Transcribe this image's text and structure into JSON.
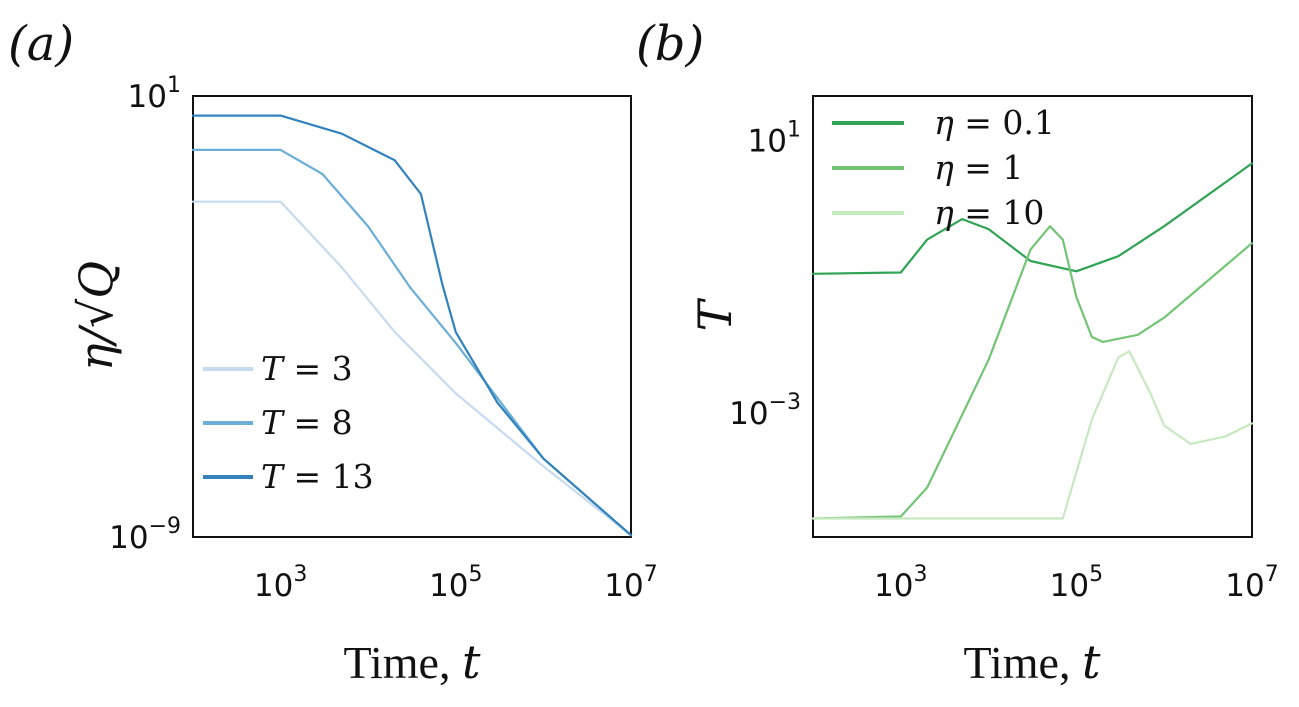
{
  "chart_data": [
    {
      "panel_label": "(a)",
      "type": "line",
      "xscale": "log",
      "yscale": "log",
      "xlabel_text": "Time, ",
      "xlabel_var": "t",
      "ylabel": "η/√Q",
      "xlim": [
        100,
        10000000
      ],
      "ylim": [
        1e-09,
        10
      ],
      "x_ticks": [
        {
          "base": "10",
          "exp": "3",
          "value": 1000
        },
        {
          "base": "10",
          "exp": "5",
          "value": 100000
        },
        {
          "base": "10",
          "exp": "7",
          "value": 10000000
        }
      ],
      "y_ticks": [
        {
          "base": "10",
          "exp": "1",
          "value": 10
        },
        {
          "base": "10",
          "exp": "−9",
          "value": 1e-09
        }
      ],
      "legend_position": "lower-left",
      "series": [
        {
          "name": "T = 3",
          "legend_var": "T",
          "legend_rest": " = 3",
          "color": "#c6dbef",
          "points": [
            [
              100,
              0.04
            ],
            [
              1000,
              0.04
            ],
            [
              5000,
              0.0013
            ],
            [
              20000,
              4.5e-05
            ],
            [
              100000,
              1.8e-06
            ],
            [
              1000000,
              4e-08
            ],
            [
              10000000,
              1.1e-09
            ]
          ]
        },
        {
          "name": "T = 8",
          "legend_var": "T",
          "legend_rest": " = 8",
          "color": "#6baed6",
          "points": [
            [
              100,
              0.6
            ],
            [
              1000,
              0.6
            ],
            [
              3000,
              0.17
            ],
            [
              10000,
              0.011
            ],
            [
              30000,
              0.00046
            ],
            [
              100000,
              2.5e-05
            ],
            [
              1000000,
              6e-08
            ],
            [
              10000000,
              1.1e-09
            ]
          ]
        },
        {
          "name": "T = 13",
          "legend_var": "T",
          "legend_rest": " = 13",
          "color": "#3182bd",
          "points": [
            [
              100,
              3.6
            ],
            [
              1000,
              3.6
            ],
            [
              5000,
              1.4
            ],
            [
              20000,
              0.35
            ],
            [
              40000,
              0.06
            ],
            [
              70000,
              0.00055
            ],
            [
              100000,
              4.4e-05
            ],
            [
              300000,
              1.1e-06
            ],
            [
              1000000,
              6e-08
            ],
            [
              10000000,
              1.1e-09
            ]
          ]
        }
      ]
    },
    {
      "panel_label": "(b)",
      "type": "line",
      "xscale": "log",
      "yscale": "log",
      "xlabel_text": "Time, ",
      "xlabel_var": "t",
      "ylabel": "T",
      "xlim": [
        100,
        10000000
      ],
      "ylim": [
        1.5e-05,
        45
      ],
      "x_ticks": [
        {
          "base": "10",
          "exp": "3",
          "value": 1000
        },
        {
          "base": "10",
          "exp": "5",
          "value": 100000
        },
        {
          "base": "10",
          "exp": "7",
          "value": 10000000
        }
      ],
      "y_ticks": [
        {
          "base": "10",
          "exp": "1",
          "value": 10
        },
        {
          "base": "10",
          "exp": "−3",
          "value": 0.001
        }
      ],
      "legend_position": "top-left",
      "series": [
        {
          "name": "η = 0.1",
          "legend_var": "η",
          "legend_rest": " = 0.1",
          "color": "#31a354",
          "points": [
            [
              100,
              0.11
            ],
            [
              1000,
              0.115
            ],
            [
              2000,
              0.35
            ],
            [
              5000,
              0.7
            ],
            [
              10000,
              0.5
            ],
            [
              30000,
              0.17
            ],
            [
              100000,
              0.12
            ],
            [
              300000,
              0.2
            ],
            [
              1000000,
              0.55
            ],
            [
              10000000,
              4.6
            ]
          ]
        },
        {
          "name": "η = 1",
          "legend_var": "η",
          "legend_rest": " = 1",
          "color": "#74c476",
          "points": [
            [
              100,
              2.8e-05
            ],
            [
              1000,
              3e-05
            ],
            [
              2000,
              8e-05
            ],
            [
              10000,
              0.006
            ],
            [
              30000,
              0.25
            ],
            [
              50000,
              0.55
            ],
            [
              70000,
              0.35
            ],
            [
              100000,
              0.05
            ],
            [
              150000,
              0.013
            ],
            [
              200000,
              0.011
            ],
            [
              500000,
              0.014
            ],
            [
              1000000,
              0.025
            ],
            [
              10000000,
              0.31
            ]
          ]
        },
        {
          "name": "η = 10",
          "legend_var": "η",
          "legend_rest": " = 10",
          "color": "#c7e9c0",
          "points": [
            [
              100,
              2.8e-05
            ],
            [
              70000,
              2.8e-05
            ],
            [
              150000,
              0.0008
            ],
            [
              300000,
              0.0065
            ],
            [
              400000,
              0.008
            ],
            [
              700000,
              0.0019
            ],
            [
              1000000,
              0.00065
            ],
            [
              2000000,
              0.00035
            ],
            [
              5000000,
              0.00045
            ],
            [
              10000000,
              0.0007
            ]
          ]
        }
      ]
    }
  ]
}
